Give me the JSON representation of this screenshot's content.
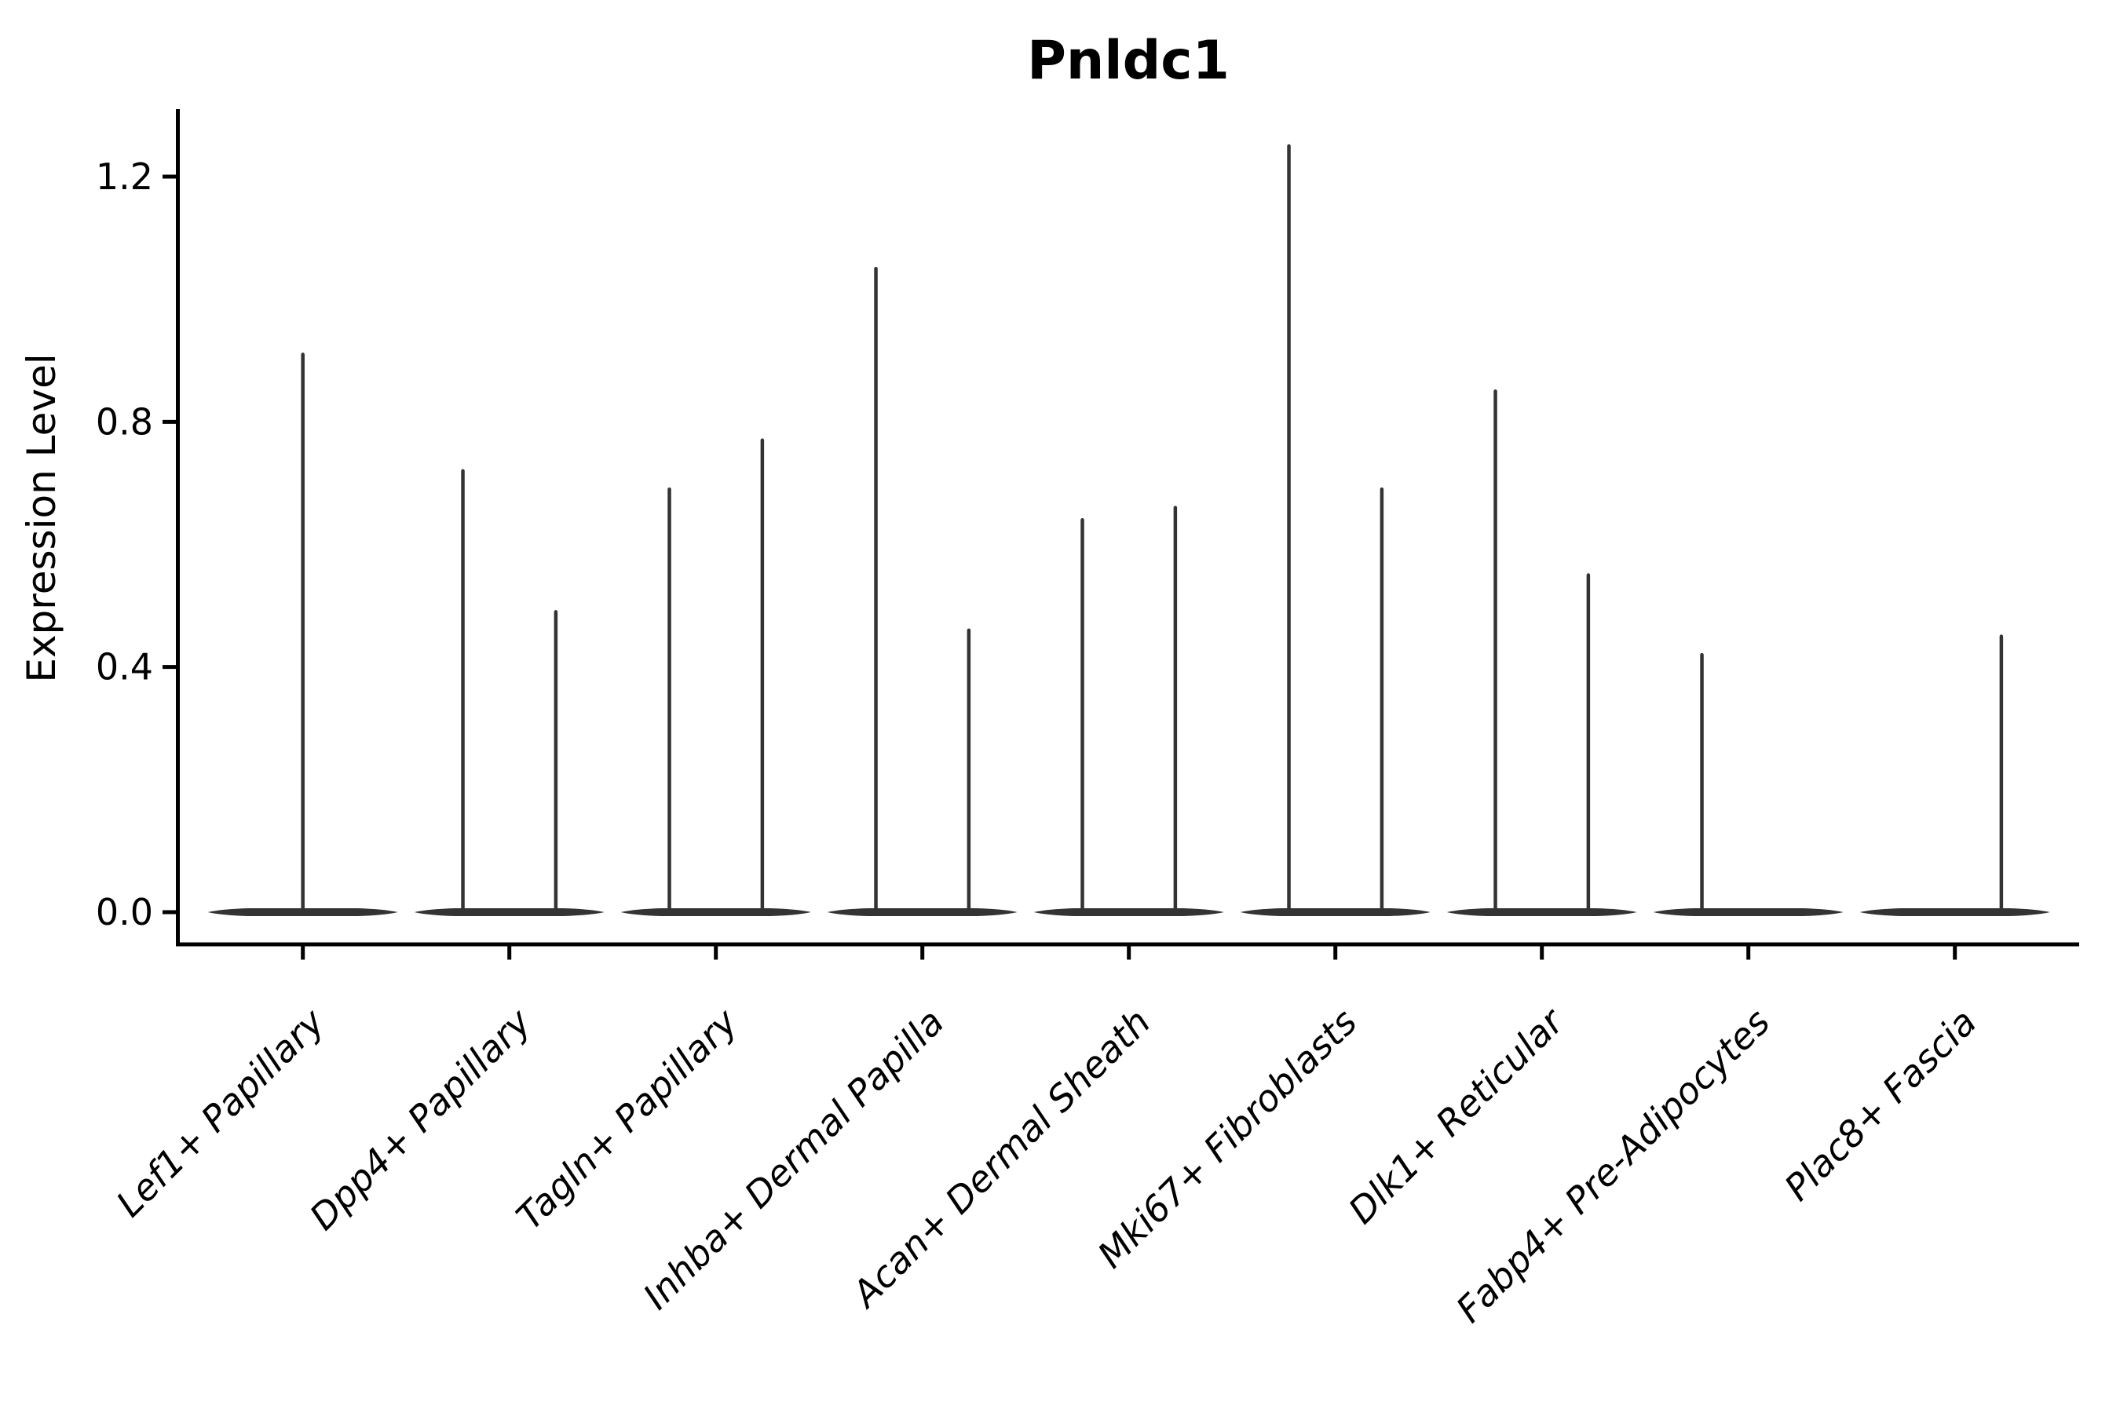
{
  "figure": {
    "title": "Pnldc1"
  },
  "chart_data": {
    "type": "violin",
    "title": "Pnldc1",
    "xlabel": "",
    "ylabel": "Expression Level",
    "ylim": [
      0,
      1.31
    ],
    "yticks": [
      0.0,
      0.4,
      0.8,
      1.2
    ],
    "ytick_labels": [
      "0.0",
      "0.4",
      "0.8",
      "1.2"
    ],
    "grid": false,
    "legend": null,
    "background": "#ffffff",
    "categories": [
      "Lef1+ Papillary",
      "Dpp4+ Papillary",
      "Tagln+ Papillary",
      "Inhba+ Dermal Papilla",
      "Acan+ Dermal Sheath",
      "Mki67+ Fibroblasts",
      "Dlk1+ Reticular",
      "Fabp4+ Pre-Adipocytes",
      "Plac8+ Fascia"
    ],
    "violins": [
      {
        "label": "Lef1+ Papillary",
        "baseline_value": 0.0,
        "spikes": [
          {
            "offset_frac": 0.0,
            "max": 0.91
          }
        ]
      },
      {
        "label": "Dpp4+ Papillary",
        "baseline_value": 0.0,
        "spikes": [
          {
            "offset_frac": -0.225,
            "max": 0.72
          },
          {
            "offset_frac": 0.225,
            "max": 0.49
          }
        ]
      },
      {
        "label": "Tagln+ Papillary",
        "baseline_value": 0.0,
        "spikes": [
          {
            "offset_frac": -0.225,
            "max": 0.69
          },
          {
            "offset_frac": 0.225,
            "max": 0.77
          }
        ]
      },
      {
        "label": "Inhba+ Dermal Papilla",
        "baseline_value": 0.0,
        "spikes": [
          {
            "offset_frac": -0.225,
            "max": 1.05
          },
          {
            "offset_frac": 0.225,
            "max": 0.46
          }
        ]
      },
      {
        "label": "Acan+ Dermal Sheath",
        "baseline_value": 0.0,
        "spikes": [
          {
            "offset_frac": -0.225,
            "max": 0.64
          },
          {
            "offset_frac": 0.225,
            "max": 0.66
          }
        ]
      },
      {
        "label": "Mki67+ Fibroblasts",
        "baseline_value": 0.0,
        "spikes": [
          {
            "offset_frac": -0.225,
            "max": 1.25
          },
          {
            "offset_frac": 0.225,
            "max": 0.69
          }
        ]
      },
      {
        "label": "Dlk1+ Reticular",
        "baseline_value": 0.0,
        "spikes": [
          {
            "offset_frac": -0.225,
            "max": 0.85
          },
          {
            "offset_frac": 0.225,
            "max": 0.55
          }
        ]
      },
      {
        "label": "Fabp4+ Pre-Adipocytes",
        "baseline_value": 0.0,
        "spikes": [
          {
            "offset_frac": -0.225,
            "max": 0.42
          }
        ]
      },
      {
        "label": "Plac8+ Fascia",
        "baseline_value": 0.0,
        "spikes": [
          {
            "offset_frac": 0.225,
            "max": 0.45
          }
        ]
      }
    ],
    "colors": {
      "violin_fill": "#333333",
      "spike_stroke": "#333333",
      "axis": "#000000",
      "text": "#000000",
      "background": "#ffffff"
    }
  }
}
